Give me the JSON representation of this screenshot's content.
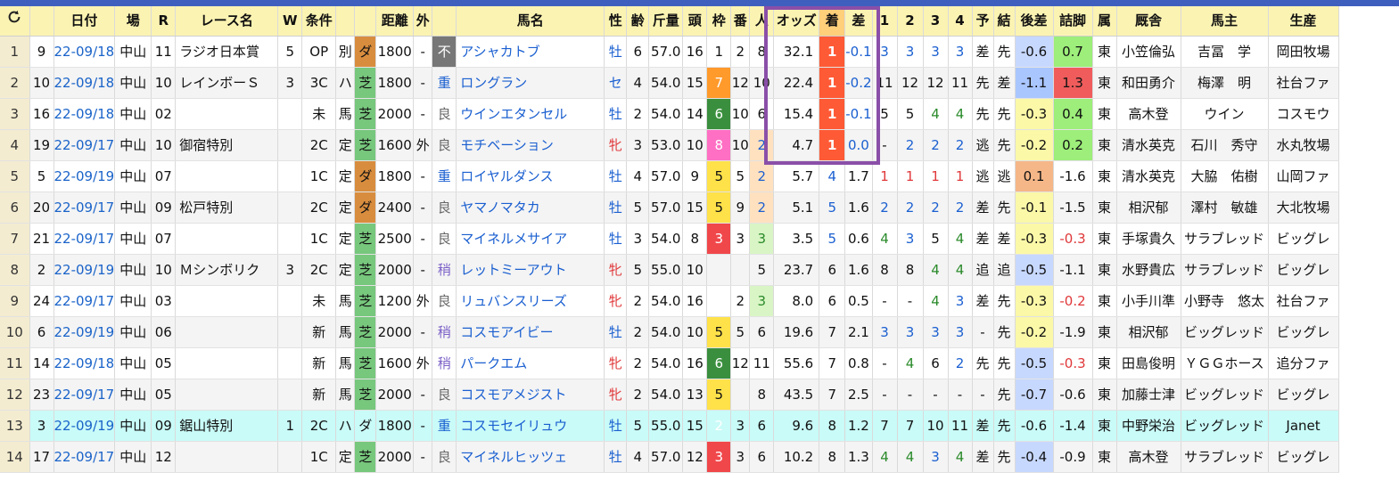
{
  "colors": {
    "top_bar": "#3f5fbf",
    "header_bg": "#fbf3b2",
    "row_alt": "#f4f4f4",
    "highlight_row": "#c9fbf8",
    "selection_frame": "#8a4fa8",
    "dirt": "#d88d3e",
    "turf": "#77c77d",
    "rank1_cell": "#ff5a36",
    "rank2_cell": "#ffe1c0",
    "rank3_cell": "#d9f5c5",
    "late_good": "#9dee7a",
    "late_best": "#f05c5c"
  },
  "header": {
    "refresh_icon": "refresh-icon",
    "columns": [
      "日付",
      "場",
      "R",
      "レース名",
      "W",
      "条件",
      "",
      "",
      "距離",
      "外",
      "",
      "馬名",
      "性",
      "齢",
      "斤量",
      "頭",
      "枠",
      "番",
      "人",
      "オッズ",
      "着",
      "差",
      "1",
      "2",
      "3",
      "4",
      "予",
      "結",
      "後差",
      "詰脚",
      "属",
      "厩舎",
      "馬主",
      "生産"
    ]
  },
  "rows": [
    [
      "1",
      "9",
      "22-09/18",
      "中山",
      "11",
      "ラジオ日本賞",
      "5",
      "OP",
      "別",
      "ダ",
      "1800",
      "-",
      "不",
      "アシャカトブ",
      "牡",
      "6",
      "57.0",
      "16",
      "1",
      "2",
      "8",
      "32.1",
      "1",
      "-0.1",
      "3",
      "3",
      "3",
      "3",
      "差",
      "先",
      "-0.6",
      "0.7",
      "東",
      "小笠倫弘",
      "吉冨　学",
      "岡田牧場"
    ],
    [
      "2",
      "10",
      "22-09/18",
      "中山",
      "10",
      "レインボーＳ",
      "3",
      "3C",
      "ハ",
      "芝",
      "1800",
      "-",
      "重",
      "ロングラン",
      "セ",
      "4",
      "54.0",
      "15",
      "7",
      "12",
      "10",
      "22.4",
      "1",
      "-0.2",
      "11",
      "12",
      "12",
      "11",
      "先",
      "差",
      "-1.1",
      "1.3",
      "東",
      "和田勇介",
      "梅澤　明",
      "社台ファ"
    ],
    [
      "3",
      "16",
      "22-09/18",
      "中山",
      "02",
      "",
      "",
      "未",
      "馬",
      "芝",
      "2000",
      "-",
      "良",
      "ウインエタンセル",
      "牡",
      "2",
      "54.0",
      "14",
      "6",
      "10",
      "6",
      "15.4",
      "1",
      "-0.1",
      "5",
      "5",
      "4",
      "4",
      "先",
      "先",
      "-0.3",
      "0.4",
      "東",
      "高木登",
      "ウイン",
      "コスモウ"
    ],
    [
      "4",
      "19",
      "22-09/17",
      "中山",
      "10",
      "御宿特別",
      "",
      "2C",
      "定",
      "芝",
      "1600",
      "外",
      "良",
      "モチベーション",
      "牝",
      "3",
      "53.0",
      "10",
      "8",
      "10",
      "2",
      "4.7",
      "1",
      "0.0",
      "-",
      "2",
      "2",
      "2",
      "逃",
      "先",
      "-0.2",
      "0.2",
      "東",
      "清水英克",
      "石川　秀守",
      "水丸牧場"
    ],
    [
      "5",
      "5",
      "22-09/19",
      "中山",
      "07",
      "",
      "",
      "1C",
      "定",
      "ダ",
      "1800",
      "-",
      "重",
      "ロイヤルダンス",
      "牡",
      "4",
      "57.0",
      "9",
      "5",
      "5",
      "2",
      "5.7",
      "4",
      "1.7",
      "1",
      "1",
      "1",
      "1",
      "逃",
      "逃",
      "0.1",
      "-1.6",
      "東",
      "清水英克",
      "大脇　佑樹",
      "山岡ファ"
    ],
    [
      "6",
      "20",
      "22-09/17",
      "中山",
      "09",
      "松戸特別",
      "",
      "2C",
      "定",
      "ダ",
      "2400",
      "-",
      "良",
      "ヤマノマタカ",
      "牡",
      "5",
      "57.0",
      "15",
      "5",
      "9",
      "2",
      "5.1",
      "5",
      "1.6",
      "2",
      "2",
      "2",
      "2",
      "差",
      "先",
      "-0.1",
      "-1.5",
      "東",
      "相沢郁",
      "澤村　敏雄",
      "大北牧場"
    ],
    [
      "7",
      "21",
      "22-09/17",
      "中山",
      "07",
      "",
      "",
      "1C",
      "定",
      "芝",
      "2500",
      "-",
      "良",
      "マイネルメサイア",
      "牡",
      "3",
      "54.0",
      "8",
      "3",
      "3",
      "3",
      "3.5",
      "5",
      "0.6",
      "4",
      "3",
      "5",
      "4",
      "差",
      "差",
      "-0.3",
      "-0.3",
      "東",
      "手塚貴久",
      "サラブレッド",
      "ビッグレ"
    ],
    [
      "8",
      "2",
      "22-09/19",
      "中山",
      "10",
      "Ｍシンボリク",
      "3",
      "2C",
      "定",
      "芝",
      "2000",
      "-",
      "稍",
      "レットミーアウト",
      "牝",
      "5",
      "55.0",
      "10",
      "",
      "",
      "5",
      "23.7",
      "6",
      "1.6",
      "8",
      "8",
      "4",
      "4",
      "追",
      "追",
      "-0.5",
      "-1.1",
      "東",
      "水野貴広",
      "サラブレッド",
      "ビッグレ"
    ],
    [
      "9",
      "24",
      "22-09/17",
      "中山",
      "03",
      "",
      "",
      "未",
      "馬",
      "芝",
      "1200",
      "外",
      "良",
      "リュバンスリーズ",
      "牝",
      "2",
      "54.0",
      "16",
      "",
      "2",
      "3",
      "8.0",
      "6",
      "0.5",
      "-",
      "-",
      "4",
      "3",
      "差",
      "先",
      "-0.3",
      "-0.2",
      "東",
      "小手川準",
      "小野寺　悠太",
      "社台ファ"
    ],
    [
      "10",
      "6",
      "22-09/19",
      "中山",
      "06",
      "",
      "",
      "新",
      "馬",
      "芝",
      "2000",
      "-",
      "稍",
      "コスモアイビー",
      "牡",
      "2",
      "54.0",
      "10",
      "5",
      "5",
      "6",
      "19.6",
      "7",
      "2.1",
      "3",
      "3",
      "3",
      "3",
      "-",
      "先",
      "-0.2",
      "-1.9",
      "東",
      "相沢郁",
      "ビッグレッド",
      "ビッグレ"
    ],
    [
      "11",
      "14",
      "22-09/18",
      "中山",
      "05",
      "",
      "",
      "新",
      "馬",
      "芝",
      "1600",
      "外",
      "稍",
      "パークエム",
      "牝",
      "2",
      "54.0",
      "16",
      "6",
      "12",
      "11",
      "55.6",
      "7",
      "0.8",
      "-",
      "4",
      "6",
      "2",
      "先",
      "先",
      "-0.5",
      "-0.3",
      "東",
      "田島俊明",
      "ＹＧＧホース",
      "追分ファ"
    ],
    [
      "12",
      "23",
      "22-09/17",
      "中山",
      "05",
      "",
      "",
      "新",
      "馬",
      "芝",
      "2000",
      "-",
      "良",
      "コスモアメジスト",
      "牝",
      "2",
      "54.0",
      "13",
      "5",
      "",
      "8",
      "43.5",
      "7",
      "2.5",
      "-",
      "-",
      "-",
      "-",
      "-",
      "先",
      "-0.7",
      "-0.6",
      "東",
      "加藤士津",
      "ビッグレッド",
      "ビッグレ"
    ],
    [
      "13",
      "3",
      "22-09/19",
      "中山",
      "09",
      "鋸山特別",
      "1",
      "2C",
      "ハ",
      "ダ",
      "1800",
      "-",
      "重",
      "コスモセイリュウ",
      "牡",
      "5",
      "55.0",
      "15",
      "2",
      "3",
      "6",
      "9.6",
      "8",
      "1.2",
      "7",
      "7",
      "10",
      "11",
      "差",
      "先",
      "-0.6",
      "-1.4",
      "東",
      "中野栄治",
      "ビッグレッド",
      "Janet"
    ],
    [
      "14",
      "17",
      "22-09/17",
      "中山",
      "12",
      "",
      "",
      "1C",
      "定",
      "芝",
      "2000",
      "-",
      "良",
      "マイネルヒッツェ",
      "牡",
      "4",
      "57.0",
      "12",
      "3",
      "3",
      "6",
      "10.2",
      "8",
      "1.3",
      "4",
      "4",
      "3",
      "4",
      "差",
      "先",
      "-0.4",
      "-0.9",
      "東",
      "高木登",
      "サラブレッド",
      "ビッグレ"
    ]
  ]
}
